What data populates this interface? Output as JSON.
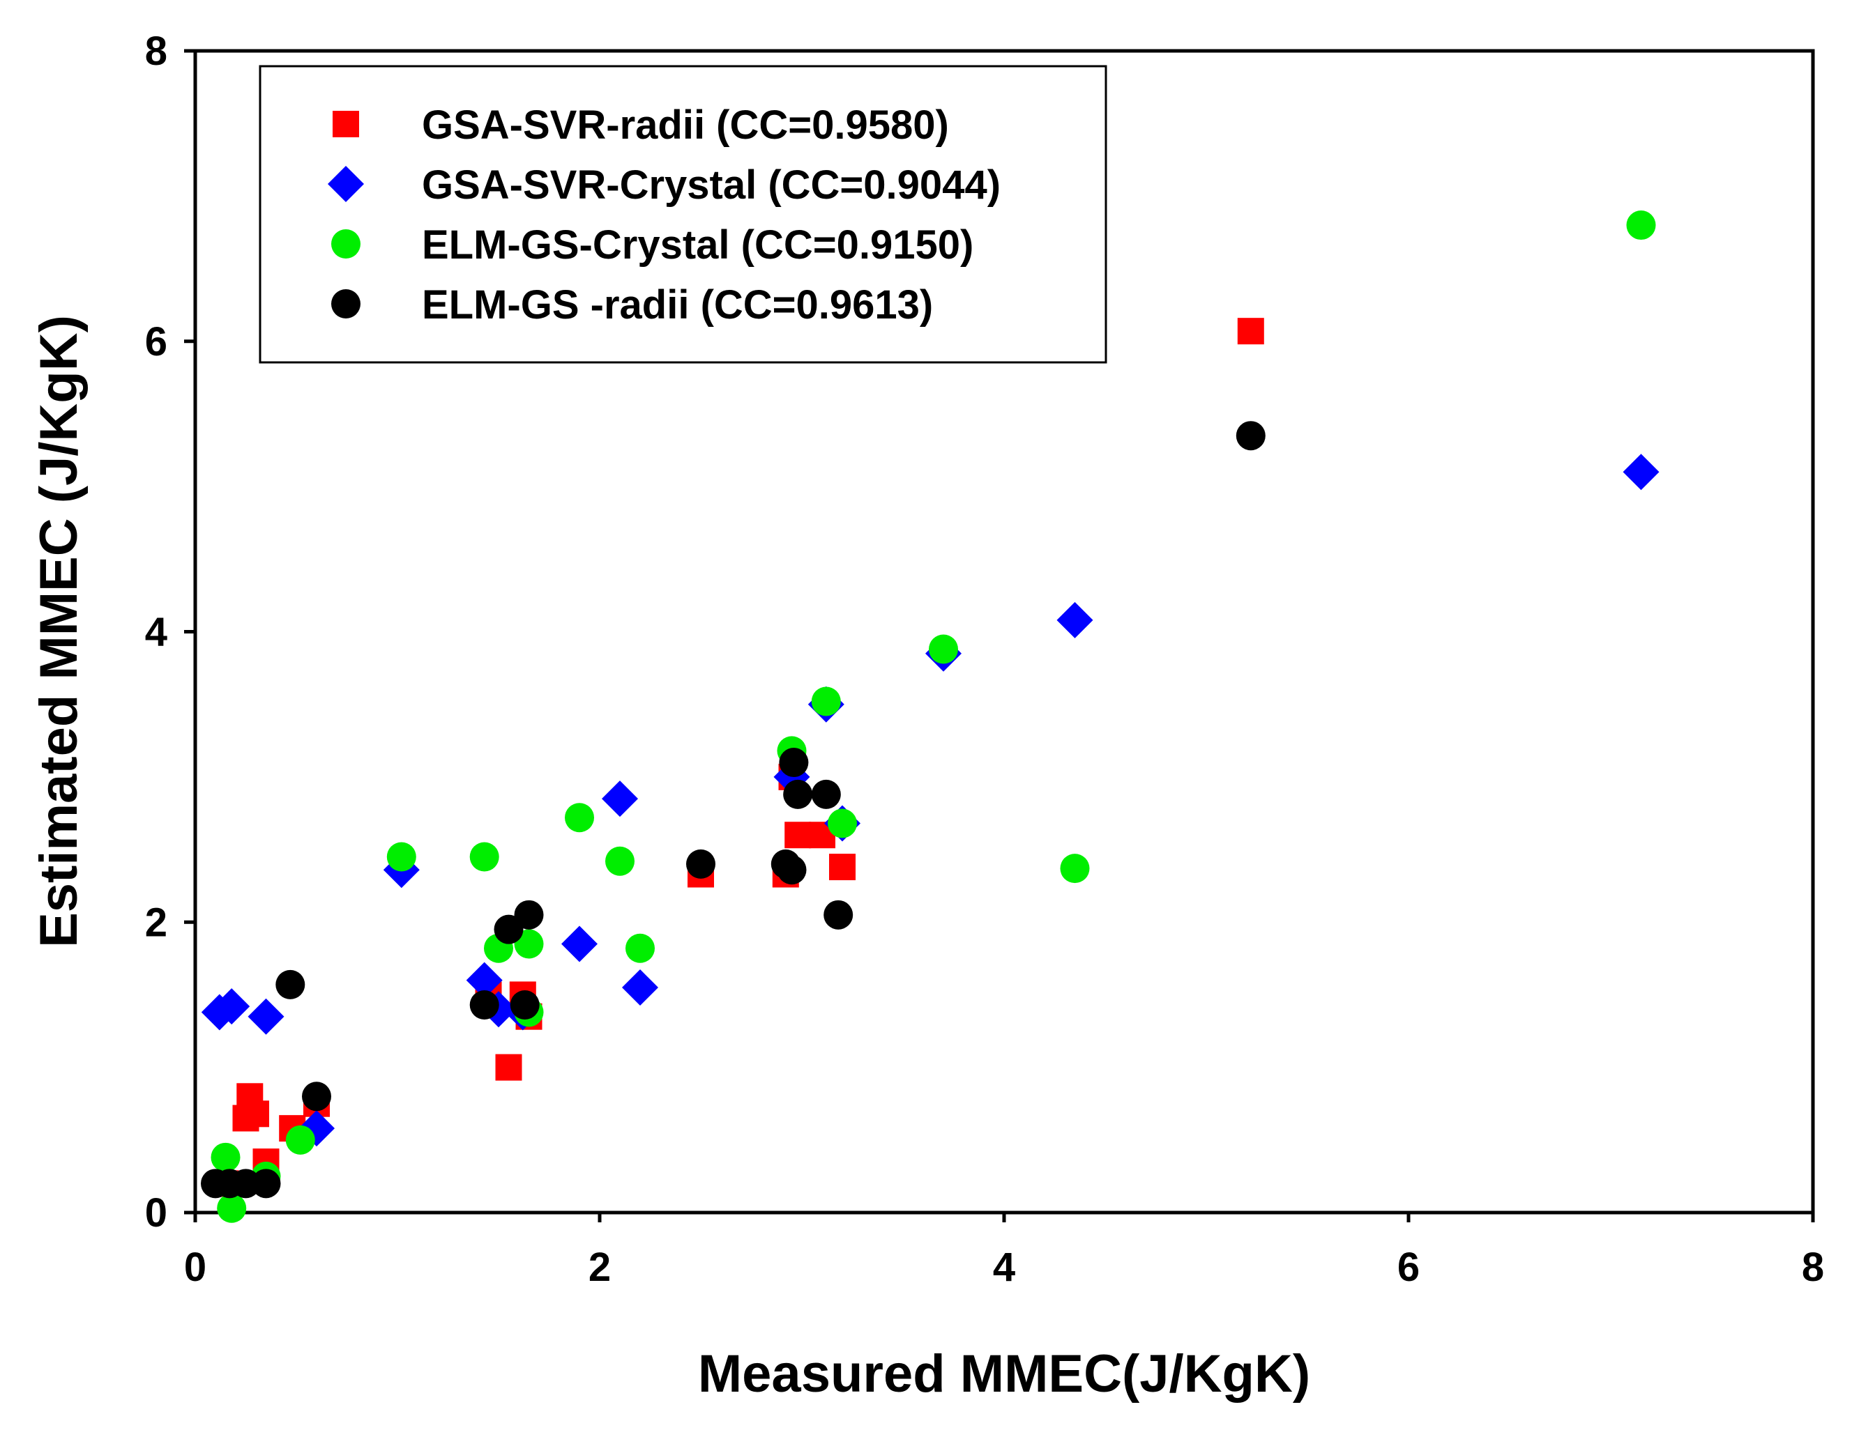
{
  "chart_data": {
    "type": "scatter",
    "title": "",
    "xlabel": "Measured MMEC(J/KgK)",
    "ylabel": "Estimated MMEC (J/KgK)",
    "xlim": [
      0,
      8
    ],
    "ylim": [
      0,
      8
    ],
    "xticks": [
      "0",
      "2",
      "4",
      "6",
      "8"
    ],
    "yticks": [
      "0",
      "2",
      "4",
      "6",
      "8"
    ],
    "grid": false,
    "legend_position": "top-left",
    "series": [
      {
        "name": "GSA-SVR-radii (CC=0.9580)",
        "marker": "square",
        "color": "#ff0000",
        "points": [
          [
            0.15,
            0.2
          ],
          [
            0.25,
            0.65
          ],
          [
            0.27,
            0.8
          ],
          [
            0.3,
            0.68
          ],
          [
            0.35,
            0.35
          ],
          [
            0.48,
            0.58
          ],
          [
            0.6,
            0.75
          ],
          [
            1.45,
            1.5
          ],
          [
            1.55,
            1.0
          ],
          [
            1.62,
            1.5
          ],
          [
            1.65,
            1.35
          ],
          [
            2.5,
            2.33
          ],
          [
            2.92,
            2.33
          ],
          [
            2.95,
            3.0
          ],
          [
            2.98,
            2.6
          ],
          [
            3.1,
            2.6
          ],
          [
            3.2,
            2.38
          ],
          [
            5.22,
            6.07
          ]
        ]
      },
      {
        "name": "GSA-SVR-Crystal (CC=0.9044)",
        "marker": "diamond",
        "color": "#0000ff",
        "points": [
          [
            0.12,
            1.38
          ],
          [
            0.18,
            1.42
          ],
          [
            0.35,
            1.35
          ],
          [
            0.6,
            0.58
          ],
          [
            1.02,
            2.36
          ],
          [
            1.43,
            1.6
          ],
          [
            1.5,
            1.4
          ],
          [
            1.62,
            1.38
          ],
          [
            1.9,
            1.85
          ],
          [
            2.1,
            2.85
          ],
          [
            2.2,
            1.55
          ],
          [
            2.95,
            3.0
          ],
          [
            3.12,
            3.5
          ],
          [
            3.2,
            2.68
          ],
          [
            3.7,
            3.85
          ],
          [
            4.35,
            4.08
          ],
          [
            7.15,
            5.1
          ]
        ]
      },
      {
        "name": "ELM-GS-Crystal (CC=0.9150)",
        "marker": "circle",
        "color": "#00ee00",
        "points": [
          [
            0.15,
            0.38
          ],
          [
            0.18,
            0.03
          ],
          [
            0.35,
            0.25
          ],
          [
            0.52,
            0.5
          ],
          [
            1.02,
            2.45
          ],
          [
            1.43,
            2.45
          ],
          [
            1.5,
            1.82
          ],
          [
            1.65,
            1.85
          ],
          [
            1.65,
            1.38
          ],
          [
            1.9,
            2.72
          ],
          [
            2.1,
            2.42
          ],
          [
            2.2,
            1.82
          ],
          [
            2.95,
            3.18
          ],
          [
            3.12,
            3.52
          ],
          [
            3.2,
            2.68
          ],
          [
            3.7,
            3.88
          ],
          [
            4.35,
            2.37
          ],
          [
            7.15,
            6.8
          ]
        ]
      },
      {
        "name": "ELM-GS -radii (CC=0.9613)",
        "marker": "circle",
        "color": "#000000",
        "points": [
          [
            0.1,
            0.2
          ],
          [
            0.17,
            0.2
          ],
          [
            0.25,
            0.2
          ],
          [
            0.35,
            0.2
          ],
          [
            0.47,
            1.57
          ],
          [
            0.6,
            0.8
          ],
          [
            1.43,
            1.43
          ],
          [
            1.55,
            1.95
          ],
          [
            1.63,
            1.43
          ],
          [
            1.65,
            2.05
          ],
          [
            2.5,
            2.4
          ],
          [
            2.92,
            2.4
          ],
          [
            2.95,
            2.36
          ],
          [
            2.96,
            3.1
          ],
          [
            2.98,
            2.88
          ],
          [
            3.12,
            2.88
          ],
          [
            3.18,
            2.05
          ],
          [
            5.22,
            5.35
          ]
        ]
      }
    ]
  }
}
